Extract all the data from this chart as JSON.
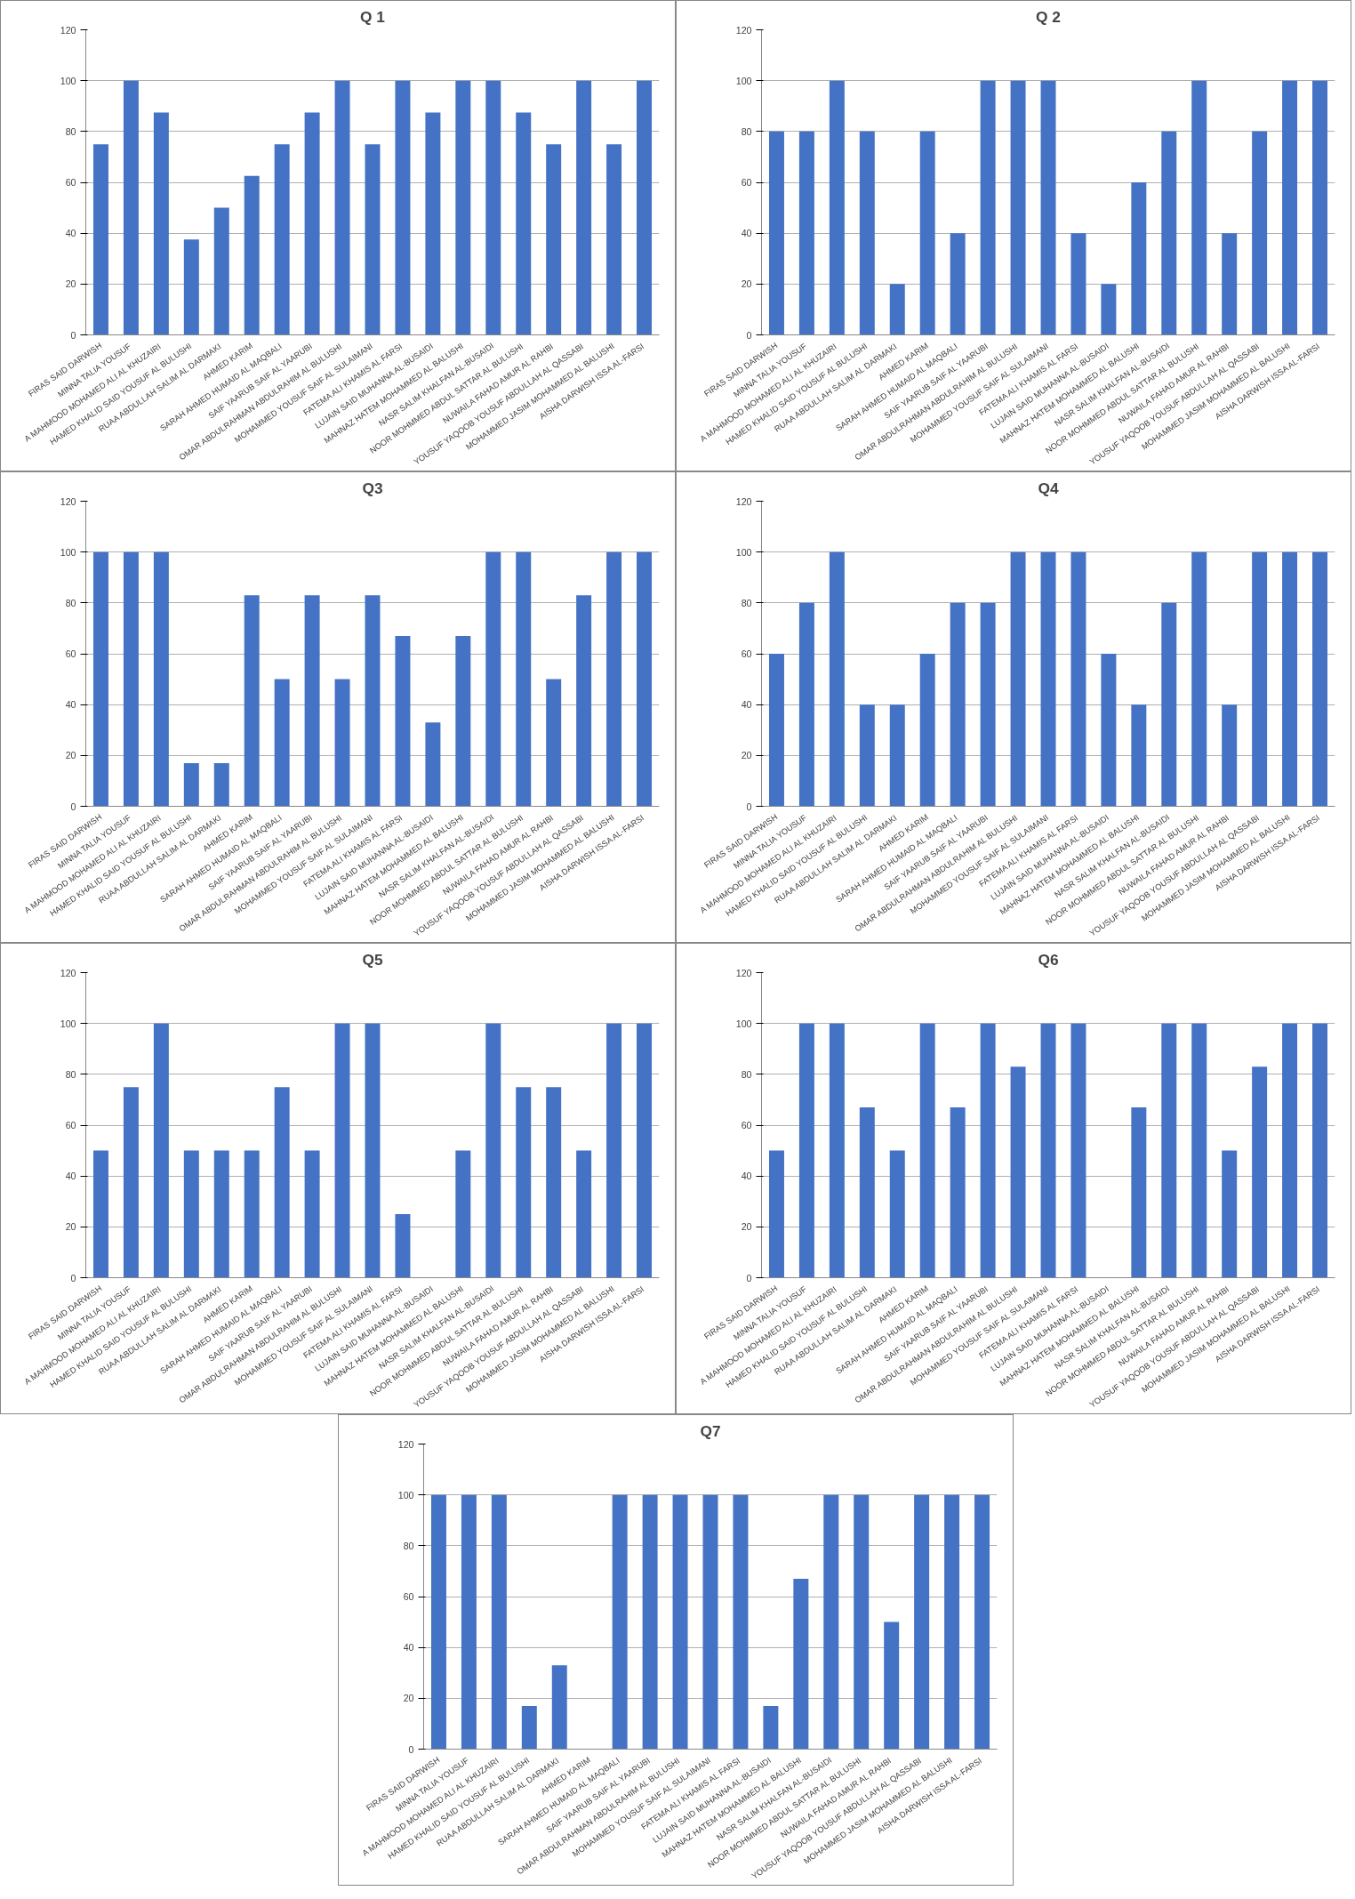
{
  "chart_data": [
    {
      "type": "bar",
      "title": "Q 1",
      "categories": [
        "FIRAS SAID DARWISH",
        "MINNA TALIA YOUSUF",
        "A MAHMOOD MOHAMED ALI AL KHUZAIRI",
        "HAMED KHALID SAID YOUSUF AL BULUSHI",
        "RUAA ABDULLAH SALIM AL DARMAKI",
        "AHMED KARIM",
        "SARAH AHMED HUMAID AL MAQBALI",
        "SAIF YAARUB SAIF AL YAARUBI",
        "OMAR ABDULRAHMAN ABDULRAHIM AL BULUSHI",
        "MOHAMMED YOUSUF SAIF AL SULAIMANI",
        "FATEMA ALI KHAMIS AL FARSI",
        "LUJAIN SAID MUHANNA AL-BUSAIDI",
        "MAHNAZ HATEM MOHAMMED AL BALUSHI",
        "NASR SALIM KHALFAN AL-BUSAIDI",
        "NOOR MOHMMED ABDUL SATTAR AL BULUSHI",
        "NUWAILA FAHAD AMUR AL RAHBI",
        "YOUSUF YAQOOB YOUSUF ABDULLAH AL QASSABI",
        "MOHAMMED JASIM MOHAMMED AL BALUSHI",
        "AISHA DARWISH ISSA AL-FARSI"
      ],
      "values": [
        75,
        100,
        87.5,
        37.5,
        50,
        62.5,
        75,
        87.5,
        100,
        75,
        100,
        87.5,
        100,
        100,
        87.5,
        75,
        100,
        75,
        100
      ],
      "color": "#4472c4",
      "ylim": [
        0,
        120
      ],
      "yticks": [
        0,
        20,
        40,
        60,
        80,
        100,
        120
      ],
      "grid": "y"
    },
    {
      "type": "bar",
      "title": "Q 2",
      "categories": [
        "FIRAS SAID DARWISH",
        "MINNA TALIA YOUSUF",
        "A MAHMOOD MOHAMED ALI AL KHUZAIRI",
        "HAMED KHALID SAID YOUSUF AL BULUSHI",
        "RUAA ABDULLAH SALIM AL DARMAKI",
        "AHMED KARIM",
        "SARAH AHMED HUMAID AL MAQBALI",
        "SAIF YAARUB SAIF AL YAARUBI",
        "OMAR ABDULRAHMAN ABDULRAHIM AL BULUSHI",
        "MOHAMMED YOUSUF SAIF AL SULAIMANI",
        "FATEMA ALI KHAMIS AL FARSI",
        "LUJAIN SAID MUHANNA AL-BUSAIDI",
        "MAHNAZ HATEM MOHAMMED AL BALUSHI",
        "NASR SALIM KHALFAN AL-BUSAIDI",
        "NOOR MOHMMED ABDUL SATTAR AL BULUSHI",
        "NUWAILA FAHAD AMUR AL RAHBI",
        "YOUSUF YAQOOB YOUSUF ABDULLAH AL QASSABI",
        "MOHAMMED JASIM MOHAMMED AL BALUSHI",
        "AISHA DARWISH ISSA AL-FARSI"
      ],
      "values": [
        80,
        80,
        100,
        80,
        20,
        80,
        40,
        100,
        100,
        100,
        40,
        20,
        60,
        80,
        100,
        40,
        80,
        100,
        100
      ],
      "color": "#4472c4",
      "ylim": [
        0,
        120
      ],
      "yticks": [
        0,
        20,
        40,
        60,
        80,
        100,
        120
      ],
      "grid": "y"
    },
    {
      "type": "bar",
      "title": "Q3",
      "categories": [
        "FIRAS SAID DARWISH",
        "MINNA TALIA YOUSUF",
        "A MAHMOOD MOHAMED ALI AL KHUZAIRI",
        "HAMED KHALID SAID YOUSUF AL BULUSHI",
        "RUAA ABDULLAH SALIM AL DARMAKI",
        "AHMED KARIM",
        "SARAH AHMED HUMAID AL MAQBALI",
        "SAIF YAARUB SAIF AL YAARUBI",
        "OMAR ABDULRAHMAN ABDULRAHIM AL BULUSHI",
        "MOHAMMED YOUSUF SAIF AL SULAIMANI",
        "FATEMA ALI KHAMIS AL FARSI",
        "LUJAIN SAID MUHANNA AL-BUSAIDI",
        "MAHNAZ HATEM MOHAMMED AL BALUSHI",
        "NASR SALIM KHALFAN AL-BUSAIDI",
        "NOOR MOHMMED ABDUL SATTAR AL BULUSHI",
        "NUWAILA FAHAD AMUR AL RAHBI",
        "YOUSUF YAQOOB YOUSUF ABDULLAH AL QASSABI",
        "MOHAMMED JASIM MOHAMMED AL BALUSHI",
        "AISHA DARWISH ISSA AL-FARSI"
      ],
      "values": [
        100,
        100,
        100,
        17,
        17,
        83,
        50,
        83,
        50,
        83,
        67,
        33,
        67,
        100,
        100,
        50,
        83,
        100,
        100
      ],
      "color": "#4472c4",
      "ylim": [
        0,
        120
      ],
      "yticks": [
        0,
        20,
        40,
        60,
        80,
        100,
        120
      ],
      "grid": "y"
    },
    {
      "type": "bar",
      "title": "Q4",
      "categories": [
        "FIRAS SAID DARWISH",
        "MINNA TALIA YOUSUF",
        "A MAHMOOD MOHAMED ALI AL KHUZAIRI",
        "HAMED KHALID SAID YOUSUF AL BULUSHI",
        "RUAA ABDULLAH SALIM AL DARMAKI",
        "AHMED KARIM",
        "SARAH AHMED HUMAID AL MAQBALI",
        "SAIF YAARUB SAIF AL YAARUBI",
        "OMAR ABDULRAHMAN ABDULRAHIM AL BULUSHI",
        "MOHAMMED YOUSUF SAIF AL SULAIMANI",
        "FATEMA ALI KHAMIS AL FARSI",
        "LUJAIN SAID MUHANNA AL-BUSAIDI",
        "MAHNAZ HATEM MOHAMMED AL BALUSHI",
        "NASR SALIM KHALFAN AL-BUSAIDI",
        "NOOR MOHMMED ABDUL SATTAR AL BULUSHI",
        "NUWAILA FAHAD AMUR AL RAHBI",
        "YOUSUF YAQOOB YOUSUF ABDULLAH AL QASSABI",
        "MOHAMMED JASIM MOHAMMED AL BALUSHI",
        "AISHA DARWISH ISSA AL-FARSI"
      ],
      "values": [
        60,
        80,
        100,
        40,
        40,
        60,
        80,
        80,
        100,
        100,
        100,
        60,
        40,
        80,
        100,
        40,
        100,
        100,
        100
      ],
      "color": "#4472c4",
      "ylim": [
        0,
        120
      ],
      "yticks": [
        0,
        20,
        40,
        60,
        80,
        100,
        120
      ],
      "grid": "y"
    },
    {
      "type": "bar",
      "title": "Q5",
      "categories": [
        "FIRAS SAID DARWISH",
        "MINNA TALIA YOUSUF",
        "A MAHMOOD MOHAMED ALI AL KHUZAIRI",
        "HAMED KHALID SAID YOUSUF AL BULUSHI",
        "RUAA ABDULLAH SALIM AL DARMAKI",
        "AHMED KARIM",
        "SARAH AHMED HUMAID AL MAQBALI",
        "SAIF YAARUB SAIF AL YAARUBI",
        "OMAR ABDULRAHMAN ABDULRAHIM AL BULUSHI",
        "MOHAMMED YOUSUF SAIF AL SULAIMANI",
        "FATEMA ALI KHAMIS AL FARSI",
        "LUJAIN SAID MUHANNA AL-BUSAIDI",
        "MAHNAZ HATEM MOHAMMED AL BALUSHI",
        "NASR SALIM KHALFAN AL-BUSAIDI",
        "NOOR MOHMMED ABDUL SATTAR AL BULUSHI",
        "NUWAILA FAHAD AMUR AL RAHBI",
        "YOUSUF YAQOOB YOUSUF ABDULLAH AL QASSABI",
        "MOHAMMED JASIM MOHAMMED AL BALUSHI",
        "AISHA DARWISH ISSA AL-FARSI"
      ],
      "values": [
        50,
        75,
        100,
        50,
        50,
        50,
        75,
        50,
        100,
        100,
        25,
        0,
        50,
        100,
        75,
        75,
        50,
        100,
        100
      ],
      "color": "#4472c4",
      "ylim": [
        0,
        120
      ],
      "yticks": [
        0,
        20,
        40,
        60,
        80,
        100,
        120
      ],
      "grid": "y"
    },
    {
      "type": "bar",
      "title": "Q6",
      "categories": [
        "FIRAS SAID DARWISH",
        "MINNA TALIA YOUSUF",
        "A MAHMOOD MOHAMED ALI AL KHUZAIRI",
        "HAMED KHALID SAID YOUSUF AL BULUSHI",
        "RUAA ABDULLAH SALIM AL DARMAKI",
        "AHMED KARIM",
        "SARAH AHMED HUMAID AL MAQBALI",
        "SAIF YAARUB SAIF AL YAARUBI",
        "OMAR ABDULRAHMAN ABDULRAHIM AL BULUSHI",
        "MOHAMMED YOUSUF SAIF AL SULAIMANI",
        "FATEMA ALI KHAMIS AL FARSI",
        "LUJAIN SAID MUHANNA AL-BUSAIDI",
        "MAHNAZ HATEM MOHAMMED AL BALUSHI",
        "NASR SALIM KHALFAN AL-BUSAIDI",
        "NOOR MOHMMED ABDUL SATTAR AL BULUSHI",
        "NUWAILA FAHAD AMUR AL RAHBI",
        "YOUSUF YAQOOB YOUSUF ABDULLAH AL QASSABI",
        "MOHAMMED JASIM MOHAMMED AL BALUSHI",
        "AISHA DARWISH ISSA AL-FARSI"
      ],
      "values": [
        50,
        100,
        100,
        67,
        50,
        100,
        67,
        100,
        83,
        100,
        100,
        0,
        67,
        100,
        100,
        50,
        83,
        100,
        100
      ],
      "color": "#4472c4",
      "ylim": [
        0,
        120
      ],
      "yticks": [
        0,
        20,
        40,
        60,
        80,
        100,
        120
      ],
      "grid": "y"
    },
    {
      "type": "bar",
      "title": "Q7",
      "categories": [
        "FIRAS SAID DARWISH",
        "MINNA TALIA YOUSUF",
        "A MAHMOOD MOHAMED ALI AL KHUZAIRI",
        "HAMED KHALID SAID YOUSUF AL BULUSHI",
        "RUAA ABDULLAH SALIM AL DARMAKI",
        "AHMED KARIM",
        "SARAH AHMED HUMAID AL MAQBALI",
        "SAIF YAARUB SAIF AL YAARUBI",
        "OMAR ABDULRAHMAN ABDULRAHIM AL BULUSHI",
        "MOHAMMED YOUSUF SAIF AL SULAIMANI",
        "FATEMA ALI KHAMIS AL FARSI",
        "LUJAIN SAID MUHANNA AL-BUSAIDI",
        "MAHNAZ HATEM MOHAMMED AL BALUSHI",
        "NASR SALIM KHALFAN AL-BUSAIDI",
        "NOOR MOHMMED ABDUL SATTAR AL BULUSHI",
        "NUWAILA FAHAD AMUR AL RAHBI",
        "YOUSUF YAQOOB YOUSUF ABDULLAH AL QASSABI",
        "MOHAMMED JASIM MOHAMMED AL BALUSHI",
        "AISHA DARWISH ISSA AL-FARSI"
      ],
      "values": [
        100,
        100,
        100,
        17,
        33,
        0,
        100,
        100,
        100,
        100,
        100,
        17,
        67,
        100,
        100,
        50,
        100,
        100,
        100
      ],
      "color": "#4472c4",
      "ylim": [
        0,
        120
      ],
      "yticks": [
        0,
        20,
        40,
        60,
        80,
        100,
        120
      ],
      "grid": "y"
    }
  ]
}
